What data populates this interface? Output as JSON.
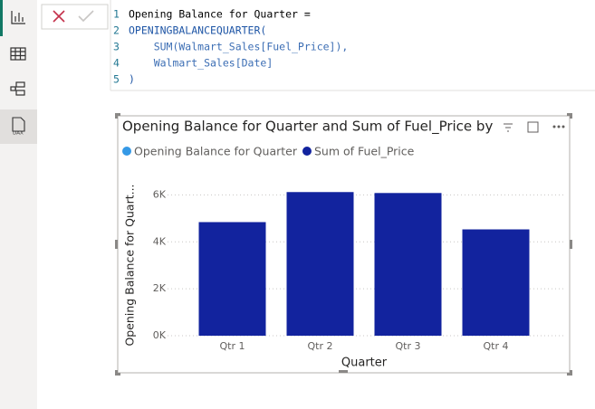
{
  "editor": {
    "line_numbers": [
      "1",
      "2",
      "3",
      "4",
      "5"
    ],
    "lines": [
      "Opening Balance for Quarter =",
      "OPENINGBALANCEQUARTER(",
      "    SUM(Walmart_Sales[Fuel_Price]),",
      "    Walmart_Sales[Date]",
      ")"
    ]
  },
  "sidebar": {
    "dax_label": "DAX"
  },
  "chart_data": {
    "type": "bar",
    "title": "Opening Balance for Quarter and Sum of Fuel_Price by",
    "x_label": "Quarter",
    "y_label": "Opening Balance for Quart...",
    "categories": [
      "Qtr 1",
      "Qtr 2",
      "Qtr 3",
      "Qtr 4"
    ],
    "series": [
      {
        "name": "Opening Balance for Quarter",
        "color": "#3599e6",
        "values": [
          null,
          null,
          null,
          null
        ]
      },
      {
        "name": "Sum of Fuel_Price",
        "color": "#12239e",
        "values": [
          4840,
          6120,
          6080,
          4530
        ]
      }
    ],
    "ylim": [
      0,
      6400
    ],
    "yticks": [
      {
        "value": 0,
        "label": "0K"
      },
      {
        "value": 2000,
        "label": "2K"
      },
      {
        "value": 4000,
        "label": "4K"
      },
      {
        "value": 6000,
        "label": "6K"
      }
    ],
    "grid": true
  }
}
